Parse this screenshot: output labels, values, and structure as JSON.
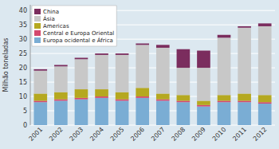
{
  "chart_data": {
    "type": "bar",
    "stacked": true,
    "categories": [
      "2001",
      "2002",
      "2003",
      "2004",
      "2005",
      "2006",
      "2007",
      "2008",
      "2009",
      "2010",
      "2011",
      "2012"
    ],
    "series": [
      {
        "name": "Europa ocidental e África",
        "color": "#7aadd4",
        "values": [
          8.0,
          8.5,
          9.0,
          9.5,
          8.5,
          9.5,
          8.5,
          8.0,
          6.5,
          8.0,
          8.0,
          7.5
        ]
      },
      {
        "name": "Central e Europa Oriental",
        "color": "#d4496e",
        "values": [
          0.5,
          0.5,
          0.5,
          0.5,
          0.5,
          0.5,
          0.5,
          0.5,
          0.5,
          0.5,
          0.5,
          0.5
        ]
      },
      {
        "name": "Americas",
        "color": "#b5a820",
        "values": [
          2.5,
          2.5,
          3.0,
          2.5,
          2.5,
          3.0,
          2.0,
          2.0,
          1.5,
          2.0,
          2.5,
          2.5
        ]
      },
      {
        "name": "Ásia",
        "color": "#c8c8c8",
        "values": [
          8.0,
          9.0,
          10.5,
          12.0,
          13.0,
          15.0,
          16.0,
          9.5,
          11.5,
          20.0,
          23.0,
          24.0
        ]
      },
      {
        "name": "China",
        "color": "#7b2d5e",
        "values": [
          0.5,
          0.5,
          0.5,
          0.5,
          0.5,
          0.5,
          1.0,
          6.5,
          6.0,
          1.0,
          0.5,
          1.0
        ]
      }
    ],
    "ylabel": "Milhão toneladas",
    "ylim": [
      0,
      42
    ],
    "yticks": [
      0,
      5,
      10,
      15,
      20,
      25,
      30,
      35,
      40
    ],
    "grid": true,
    "legend": "upper left"
  }
}
